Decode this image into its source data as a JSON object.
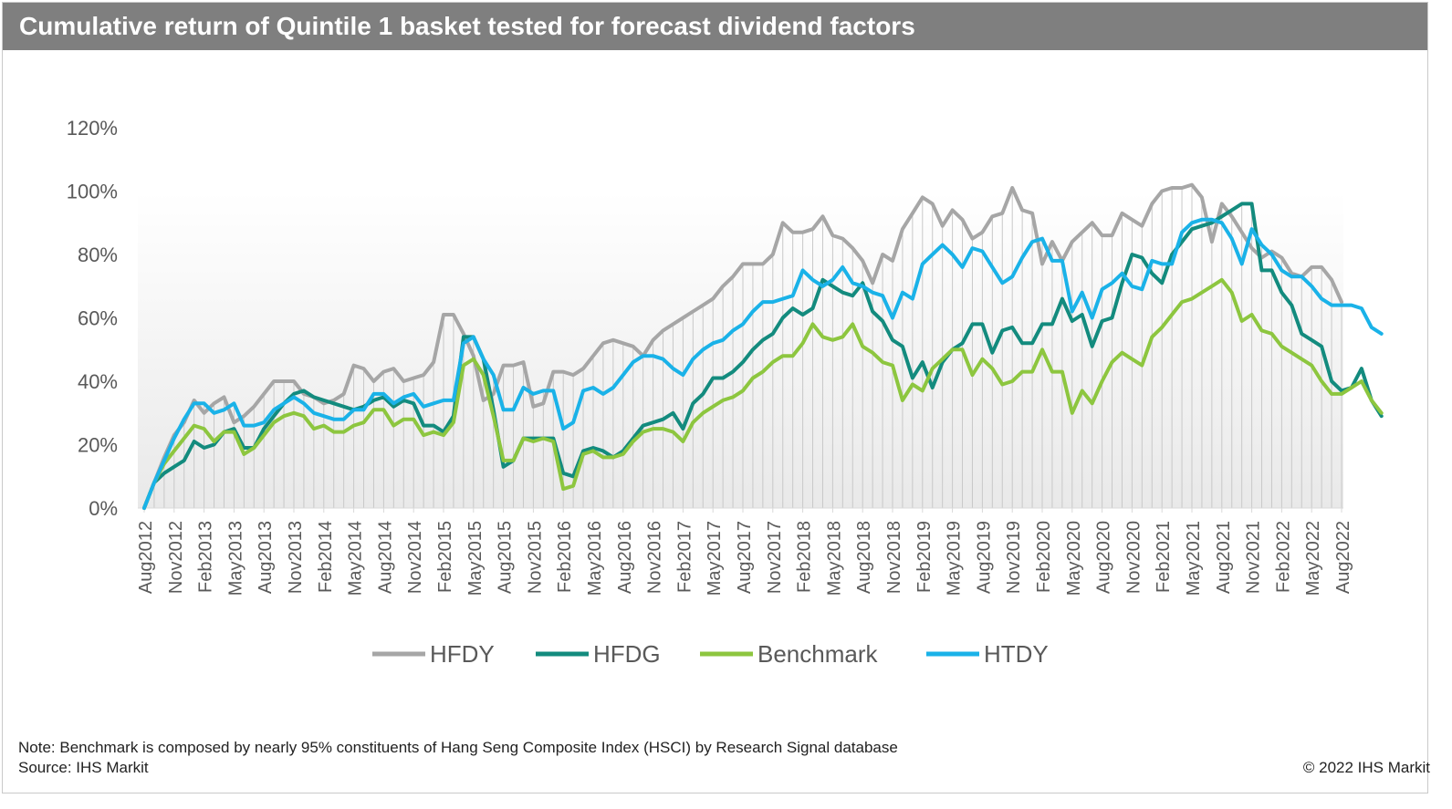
{
  "header": {
    "title": "Cumulative return of Quintile  1 basket tested for forecast dividend factors"
  },
  "footer": {
    "note": "Note: Benchmark is composed by nearly 95% constituents of Hang Seng Composite Index (HSCI) by Research Signal database",
    "source": "Source: IHS Markit",
    "copyright": "© 2022 IHS Markit"
  },
  "chart_data": {
    "type": "line",
    "title": "Cumulative return of Quintile  1 basket tested for forecast dividend factors",
    "xlabel": "",
    "ylabel": "",
    "y_tick_labels": [
      "0%",
      "20%",
      "40%",
      "60%",
      "80%",
      "100%",
      "120%"
    ],
    "ylim": [
      0,
      120
    ],
    "legend_position": "bottom",
    "x_tick_labels": [
      "Aug2012",
      "Nov2012",
      "Feb2013",
      "May2013",
      "Aug2013",
      "Nov2013",
      "Feb2014",
      "May2014",
      "Aug2014",
      "Nov2014",
      "Feb2015",
      "May2015",
      "Aug2015",
      "Nov2015",
      "Feb2016",
      "May2016",
      "Aug2016",
      "Nov2016",
      "Feb2017",
      "May2017",
      "Aug2017",
      "Nov2017",
      "Feb2018",
      "May2018",
      "Aug2018",
      "Nov2018",
      "Feb2019",
      "May2019",
      "Aug2019",
      "Nov2019",
      "Feb2020",
      "May2020",
      "Aug2020",
      "Nov2020",
      "Feb2021",
      "May2021",
      "Aug2021",
      "Nov2021",
      "Feb2022",
      "May2022",
      "Aug2022"
    ],
    "x_start": "Aug2012",
    "x_end": "Aug2022",
    "frequency": "monthly",
    "series": [
      {
        "name": "HFDY",
        "color": "#a6a6a6",
        "values": [
          0,
          8,
          16,
          23,
          27,
          34,
          30,
          33,
          35,
          27,
          29,
          32,
          36,
          40,
          40,
          40,
          36,
          35,
          33,
          34,
          36,
          45,
          44,
          40,
          43,
          44,
          40,
          41,
          42,
          46,
          61,
          61,
          55,
          48,
          34,
          36,
          45,
          45,
          46,
          32,
          33,
          43,
          43,
          42,
          44,
          48,
          52,
          53,
          52,
          51,
          48,
          53,
          56,
          58,
          60,
          62,
          64,
          66,
          70,
          73,
          77,
          77,
          77,
          80,
          90,
          87,
          87,
          88,
          92,
          86,
          85,
          82,
          78,
          71,
          80,
          78,
          88,
          93,
          98,
          96,
          89,
          94,
          91,
          85,
          87,
          92,
          93,
          101,
          94,
          93,
          77,
          84,
          78,
          84,
          87,
          90,
          86,
          86,
          93,
          91,
          89,
          96,
          100,
          101,
          101,
          102,
          98,
          84,
          96,
          92,
          87,
          82,
          79,
          81,
          79,
          74,
          73,
          76,
          76,
          72,
          65
        ]
      },
      {
        "name": "HFDG",
        "color": "#138b7e",
        "values": [
          0,
          8,
          11,
          13,
          15,
          21,
          19,
          20,
          24,
          25,
          19,
          19,
          25,
          29,
          33,
          36,
          37,
          35,
          34,
          33,
          32,
          31,
          32,
          34,
          35,
          32,
          34,
          33,
          26,
          26,
          24,
          29,
          54,
          54,
          47,
          31,
          13,
          15,
          22,
          22,
          22,
          22,
          11,
          10,
          18,
          19,
          18,
          16,
          18,
          22,
          26,
          27,
          28,
          30,
          25,
          33,
          36,
          41,
          41,
          43,
          46,
          50,
          53,
          55,
          60,
          63,
          61,
          63,
          72,
          70,
          68,
          67,
          71,
          62,
          59,
          53,
          51,
          41,
          46,
          38,
          46,
          50,
          52,
          58,
          58,
          49,
          56,
          57,
          52,
          52,
          58,
          58,
          66,
          59,
          61,
          51,
          59,
          60,
          71,
          80,
          79,
          74,
          71,
          80,
          84,
          88,
          89,
          90,
          92,
          94,
          96,
          96,
          75,
          75,
          68,
          64,
          55,
          53,
          51,
          40,
          37,
          38,
          44,
          34,
          29
        ]
      },
      {
        "name": "Benchmark",
        "color": "#8dc63f",
        "values": [
          0,
          8,
          14,
          18,
          22,
          26,
          25,
          21,
          24,
          24,
          17,
          19,
          23,
          27,
          29,
          30,
          29,
          25,
          26,
          24,
          24,
          26,
          27,
          31,
          31,
          26,
          28,
          28,
          23,
          24,
          23,
          27,
          45,
          47,
          42,
          29,
          15,
          15,
          22,
          21,
          22,
          21,
          6,
          7,
          17,
          18,
          16,
          16,
          17,
          21,
          24,
          25,
          25,
          24,
          21,
          27,
          30,
          32,
          34,
          35,
          37,
          41,
          43,
          46,
          48,
          48,
          52,
          58,
          54,
          53,
          54,
          58,
          51,
          49,
          46,
          45,
          34,
          39,
          37,
          44,
          47,
          50,
          50,
          42,
          47,
          44,
          39,
          40,
          43,
          43,
          50,
          43,
          43,
          30,
          37,
          33,
          40,
          46,
          49,
          47,
          45,
          54,
          57,
          61,
          65,
          66,
          68,
          70,
          72,
          68,
          59,
          61,
          56,
          55,
          51,
          49,
          47,
          45,
          40,
          36,
          36,
          38,
          40,
          34,
          30
        ]
      },
      {
        "name": "HTDY",
        "color": "#1ab2e8",
        "values": [
          0,
          8,
          15,
          22,
          28,
          33,
          33,
          30,
          31,
          33,
          26,
          26,
          27,
          31,
          33,
          35,
          33,
          30,
          29,
          28,
          28,
          31,
          31,
          36,
          36,
          33,
          35,
          36,
          32,
          33,
          34,
          34,
          52,
          54,
          47,
          42,
          31,
          31,
          38,
          36,
          37,
          37,
          25,
          27,
          37,
          38,
          36,
          38,
          42,
          46,
          48,
          48,
          47,
          44,
          42,
          47,
          50,
          52,
          53,
          56,
          58,
          62,
          65,
          65,
          66,
          67,
          75,
          72,
          70,
          72,
          76,
          71,
          70,
          68,
          67,
          60,
          68,
          66,
          77,
          80,
          83,
          80,
          76,
          82,
          81,
          76,
          71,
          73,
          79,
          84,
          85,
          78,
          78,
          62,
          68,
          60,
          69,
          71,
          74,
          70,
          69,
          78,
          77,
          77,
          87,
          90,
          91,
          91,
          90,
          85,
          77,
          88,
          83,
          80,
          75,
          73,
          73,
          70,
          66,
          64,
          64,
          64,
          63,
          57,
          55
        ]
      }
    ]
  }
}
